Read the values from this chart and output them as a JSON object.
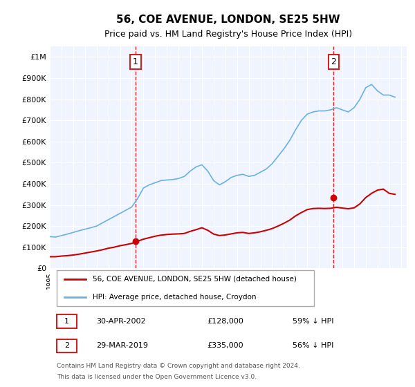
{
  "title": "56, COE AVENUE, LONDON, SE25 5HW",
  "subtitle": "Price paid vs. HM Land Registry's House Price Index (HPI)",
  "title_fontsize": 12,
  "subtitle_fontsize": 10,
  "background_color": "#ffffff",
  "plot_background_color": "#f0f4ff",
  "grid_color": "#ffffff",
  "red_line_color": "#cc0000",
  "blue_line_color": "#6ab0e0",
  "marker_color": "#cc0000",
  "vline_color": "#cc0000",
  "annotation_box_color": "#cc2222",
  "ylim": [
    0,
    1050000
  ],
  "yticks": [
    0,
    100000,
    200000,
    300000,
    400000,
    500000,
    600000,
    700000,
    800000,
    900000,
    1000000
  ],
  "ytick_labels": [
    "£0",
    "£100K",
    "£200K",
    "£300K",
    "£400K",
    "£500K",
    "£600K",
    "£700K",
    "£800K",
    "£900K",
    "£1M"
  ],
  "xlim_start": 1995.0,
  "xlim_end": 2025.5,
  "sale1_x": 2002.33,
  "sale1_y": 128000,
  "sale1_label": "1",
  "sale2_x": 2019.25,
  "sale2_y": 335000,
  "sale2_label": "2",
  "legend_line1": "56, COE AVENUE, LONDON, SE25 5HW (detached house)",
  "legend_line2": "HPI: Average price, detached house, Croydon",
  "table_row1_num": "1",
  "table_row1_date": "30-APR-2002",
  "table_row1_price": "£128,000",
  "table_row1_hpi": "59% ↓ HPI",
  "table_row2_num": "2",
  "table_row2_date": "29-MAR-2019",
  "table_row2_price": "£335,000",
  "table_row2_hpi": "56% ↓ HPI",
  "footer_line1": "Contains HM Land Registry data © Crown copyright and database right 2024.",
  "footer_line2": "This data is licensed under the Open Government Licence v3.0.",
  "hpi_x": [
    1995.0,
    1995.5,
    1996.0,
    1996.5,
    1997.0,
    1997.5,
    1998.0,
    1998.5,
    1999.0,
    1999.5,
    2000.0,
    2000.5,
    2001.0,
    2001.5,
    2002.0,
    2002.5,
    2003.0,
    2003.5,
    2004.0,
    2004.5,
    2005.0,
    2005.5,
    2006.0,
    2006.5,
    2007.0,
    2007.5,
    2008.0,
    2008.5,
    2009.0,
    2009.5,
    2010.0,
    2010.5,
    2011.0,
    2011.5,
    2012.0,
    2012.5,
    2013.0,
    2013.5,
    2014.0,
    2014.5,
    2015.0,
    2015.5,
    2016.0,
    2016.5,
    2017.0,
    2017.5,
    2018.0,
    2018.5,
    2019.0,
    2019.5,
    2020.0,
    2020.5,
    2021.0,
    2021.5,
    2022.0,
    2022.5,
    2023.0,
    2023.5,
    2024.0,
    2024.5
  ],
  "hpi_y": [
    150000,
    148000,
    155000,
    162000,
    170000,
    178000,
    185000,
    192000,
    200000,
    215000,
    230000,
    245000,
    260000,
    275000,
    290000,
    330000,
    380000,
    395000,
    405000,
    415000,
    418000,
    420000,
    425000,
    435000,
    460000,
    480000,
    490000,
    460000,
    415000,
    395000,
    410000,
    430000,
    440000,
    445000,
    435000,
    440000,
    455000,
    470000,
    495000,
    530000,
    565000,
    605000,
    655000,
    700000,
    730000,
    740000,
    745000,
    745000,
    750000,
    760000,
    750000,
    740000,
    760000,
    800000,
    855000,
    870000,
    840000,
    820000,
    820000,
    810000
  ],
  "red_x": [
    1995.0,
    1995.5,
    1996.0,
    1996.5,
    1997.0,
    1997.5,
    1998.0,
    1998.5,
    1999.0,
    1999.5,
    2000.0,
    2000.5,
    2001.0,
    2001.5,
    2002.0,
    2002.5,
    2003.0,
    2003.5,
    2004.0,
    2004.5,
    2005.0,
    2005.5,
    2006.0,
    2006.5,
    2007.0,
    2007.5,
    2008.0,
    2008.5,
    2009.0,
    2009.5,
    2010.0,
    2010.5,
    2011.0,
    2011.5,
    2012.0,
    2012.5,
    2013.0,
    2013.5,
    2014.0,
    2014.5,
    2015.0,
    2015.5,
    2016.0,
    2016.5,
    2017.0,
    2017.5,
    2018.0,
    2018.5,
    2019.0,
    2019.5,
    2020.0,
    2020.5,
    2021.0,
    2021.5,
    2022.0,
    2022.5,
    2023.0,
    2023.5,
    2024.0,
    2024.5
  ],
  "red_y": [
    55000,
    55000,
    58000,
    60000,
    63000,
    67000,
    72000,
    77000,
    82000,
    88000,
    95000,
    100000,
    107000,
    112000,
    118000,
    128000,
    138000,
    145000,
    152000,
    157000,
    160000,
    162000,
    163000,
    165000,
    175000,
    183000,
    192000,
    180000,
    162000,
    155000,
    158000,
    163000,
    168000,
    170000,
    165000,
    168000,
    173000,
    180000,
    188000,
    200000,
    213000,
    228000,
    248000,
    264000,
    278000,
    283000,
    284000,
    283000,
    284000,
    289000,
    285000,
    282000,
    286000,
    305000,
    335000,
    355000,
    370000,
    375000,
    355000,
    350000
  ]
}
